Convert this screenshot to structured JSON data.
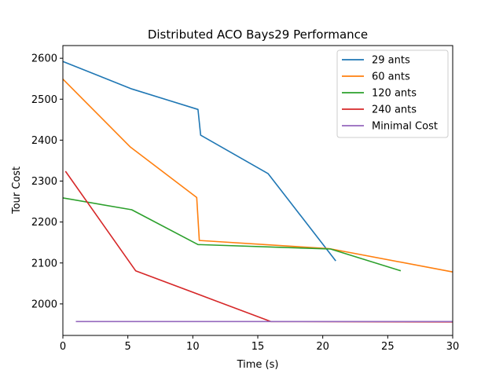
{
  "chart_data": {
    "type": "line",
    "title": "Distributed ACO Bays29 Performance",
    "xlabel": "Time (s)",
    "ylabel": "Tour Cost",
    "xlim": [
      0,
      30
    ],
    "ylim": [
      1923,
      2631
    ],
    "x_ticks": [
      0,
      5,
      10,
      15,
      20,
      25,
      30
    ],
    "y_ticks": [
      2000,
      2100,
      2200,
      2300,
      2400,
      2500,
      2600
    ],
    "grid": false,
    "legend_position": "top-right",
    "series": [
      {
        "name": "29 ants",
        "color": "#1f77b4",
        "points": [
          [
            0,
            2592
          ],
          [
            5.3,
            2525
          ],
          [
            10.4,
            2475
          ],
          [
            10.6,
            2412
          ],
          [
            15.8,
            2318
          ],
          [
            21.0,
            2105
          ]
        ]
      },
      {
        "name": "60 ants",
        "color": "#ff7f0e",
        "points": [
          [
            0,
            2549
          ],
          [
            5.2,
            2383
          ],
          [
            10.3,
            2260
          ],
          [
            10.5,
            2155
          ],
          [
            20.5,
            2135
          ],
          [
            30.0,
            2078
          ]
        ]
      },
      {
        "name": "120 ants",
        "color": "#2ca02c",
        "points": [
          [
            0,
            2259
          ],
          [
            5.3,
            2230
          ],
          [
            10.4,
            2145
          ],
          [
            20.6,
            2134
          ],
          [
            26.0,
            2081
          ]
        ]
      },
      {
        "name": "240 ants",
        "color": "#d62728",
        "points": [
          [
            0.2,
            2324
          ],
          [
            5.6,
            2081
          ],
          [
            16.0,
            1957
          ],
          [
            30.0,
            1956
          ]
        ]
      },
      {
        "name": "Minimal Cost",
        "color": "#9467bd",
        "points": [
          [
            1.0,
            1957
          ],
          [
            30.0,
            1957
          ]
        ]
      }
    ]
  }
}
